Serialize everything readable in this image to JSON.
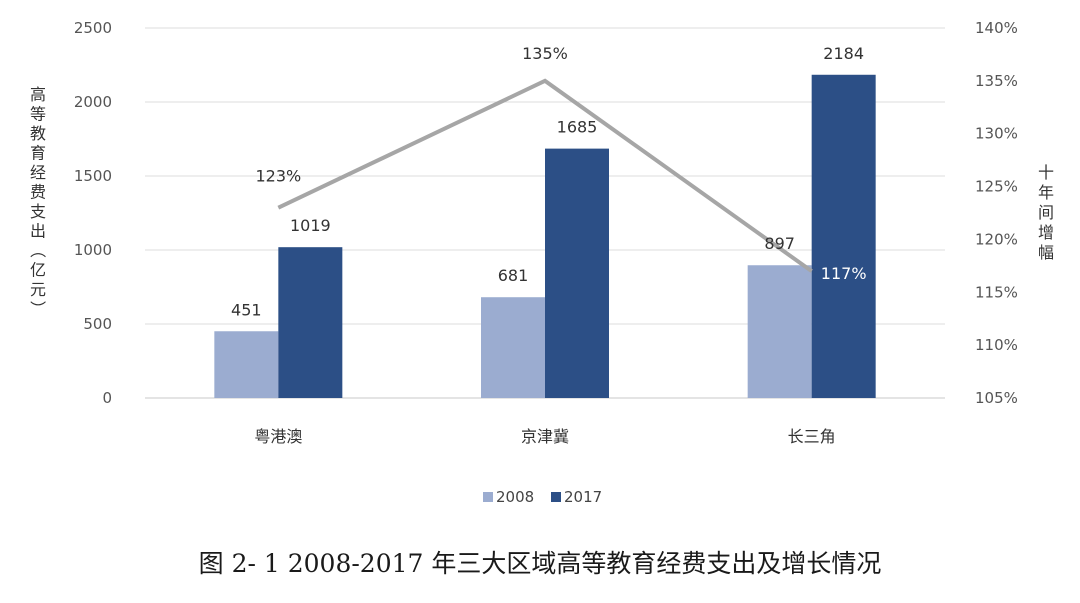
{
  "chart_data": {
    "type": "bar",
    "categories": [
      "粤港澳",
      "京津冀",
      "长三角"
    ],
    "series": [
      {
        "name": "2008",
        "values": [
          451,
          681,
          897
        ],
        "color": "#9bacd0"
      },
      {
        "name": "2017",
        "values": [
          1019,
          1685,
          2184
        ],
        "color": "#2c4f86"
      }
    ],
    "line_series": {
      "values": [
        123,
        135,
        117
      ],
      "labels": [
        "123%",
        "135%",
        "117%"
      ],
      "color": "#a6a6a6",
      "axis": "right"
    },
    "ylabel": "高等教育经费支出（亿元）",
    "ylabel_right": "十年间增幅",
    "ylim": [
      0,
      2500
    ],
    "yticks": [
      "0",
      "500",
      "1000",
      "1500",
      "2000",
      "2500"
    ],
    "ylim_right": [
      105,
      140
    ],
    "yticks_right": [
      "105%",
      "110%",
      "115%",
      "120%",
      "125%",
      "130%",
      "135%",
      "140%"
    ],
    "grid": true,
    "legend_position": "bottom"
  },
  "caption": "图 2- 1 2008-2017 年三大区域高等教育经费支出及增长情况"
}
